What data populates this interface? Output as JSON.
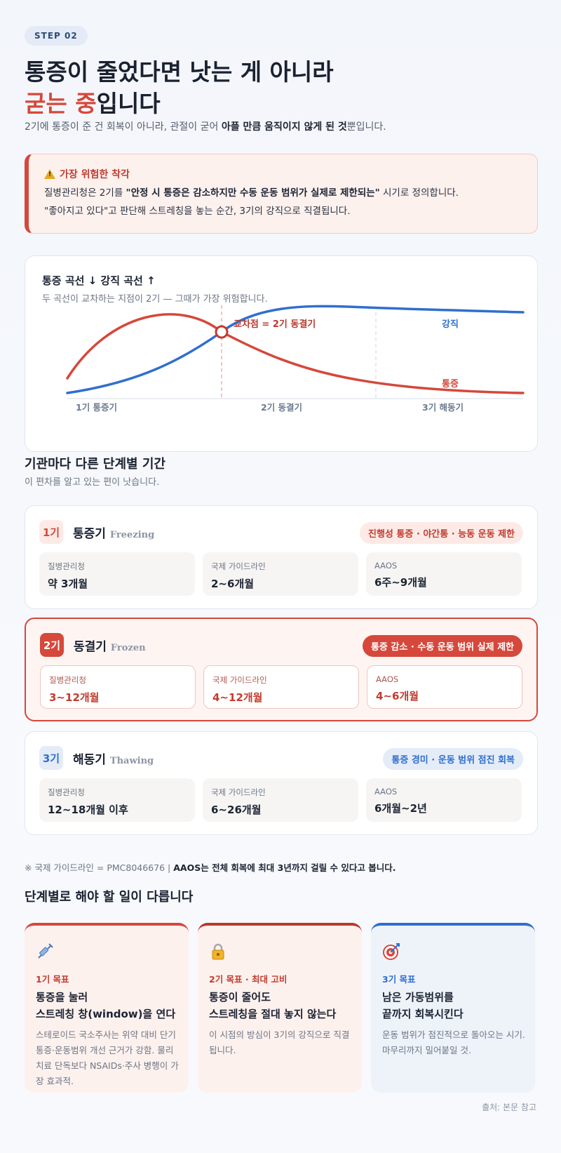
{
  "step_label": "STEP 02",
  "headline": {
    "line1": "통증이 줄었다면 낫는 게 아니라",
    "line2_red": "굳는 중",
    "line2_rest": "입니다"
  },
  "lead": {
    "pre": "2기에 통증이 준 건 회복이 아니라, 관절이 굳어 ",
    "bold": "아플 만큼 움직이지 않게 된 것",
    "post": "뿐입니다."
  },
  "warning": {
    "title": "가장 위험한 착각",
    "line1_pre": "질병관리청은 2기를 ",
    "line1_bold": "\"안정 시 통증은 감소하지만 수동 운동 범위가 실제로 제한되는\"",
    "line1_post": " 시기로 정의합니다.",
    "line2": "\"좋아지고 있다\"고 판단해 스트레칭을 놓는 순간, 3기의 강직으로 직결됩니다."
  },
  "chart": {
    "title": "통증 곡선 ↓   강직 곡선 ↑",
    "subtitle": "두 곡선이 교차하는 지점이 2기 — 그때가 가장 위험합니다.",
    "cross_label": "교차점 = 2기 동결기",
    "stiff_label": "강직",
    "pain_label": "통증",
    "stage_labels": [
      "1기 통증기",
      "2기 동결기",
      "3기 해동기"
    ],
    "colors": {
      "pain": "#d5483b",
      "stiff": "#2f6fcf"
    }
  },
  "periods": {
    "title": "기관마다 다른 단계별 기간",
    "subtitle": "이 편차를 알고 있는 편이 낫습니다."
  },
  "stages": [
    {
      "num": "1기",
      "name": "통증기",
      "en": "Freezing",
      "tag": "진행성 통증 · 야간통 · 능동 운동 제한",
      "boxes": [
        {
          "label": "질병관리청",
          "value": "약 3개월"
        },
        {
          "label": "국제 가이드라인",
          "value": "2~6개월"
        },
        {
          "label": "AAOS",
          "value": "6주~9개월"
        }
      ]
    },
    {
      "num": "2기",
      "name": "동결기",
      "en": "Frozen",
      "tag": "통증 감소 · 수동 운동 범위 실제 제한",
      "boxes": [
        {
          "label": "질병관리청",
          "value": "3~12개월"
        },
        {
          "label": "국제 가이드라인",
          "value": "4~12개월"
        },
        {
          "label": "AAOS",
          "value": "4~6개월"
        }
      ]
    },
    {
      "num": "3기",
      "name": "해동기",
      "en": "Thawing",
      "tag": "통증 경미 · 운동 범위 점진 회복",
      "boxes": [
        {
          "label": "질병관리청",
          "value": "12~18개월 이후"
        },
        {
          "label": "국제 가이드라인",
          "value": "6~26개월"
        },
        {
          "label": "AAOS",
          "value": "6개월~2년"
        }
      ]
    }
  ],
  "note": {
    "pre": "※ 국제 가이드라인 = PMC8046676  |  ",
    "bold": "AAOS는 전체 회복에 최대 3년까지 걸릴 수 있다고 봅니다."
  },
  "tasks_title": "단계별로 해야 할 일이 다릅니다",
  "tasks": [
    {
      "icon": "syringe-icon",
      "kicker": "1기 목표",
      "title1": "통증을 눌러",
      "title2": "스트레칭 창(window)을 연다",
      "desc": "스테로이드 국소주사는 위약 대비 단기 통증·운동범위 개선 근거가 강함. 물리치료 단독보다 NSAIDs·주사 병행이 가장 효과적."
    },
    {
      "icon": "lock-icon",
      "kicker": "2기 목표 · 최대 고비",
      "title1": "통증이 줄어도",
      "title2": "스트레칭을 절대 놓지 않는다",
      "desc": "이 시점의 방심이 3기의 강직으로 직결됩니다."
    },
    {
      "icon": "target-icon",
      "kicker": "3기 목표",
      "title1": "남은 가동범위를",
      "title2": "끝까지 회복시킨다",
      "desc": "운동 범위가 점진적으로 돌아오는 시기. 마무리까지 밀어붙일 것."
    }
  ],
  "source": "출처: 본문 참고"
}
